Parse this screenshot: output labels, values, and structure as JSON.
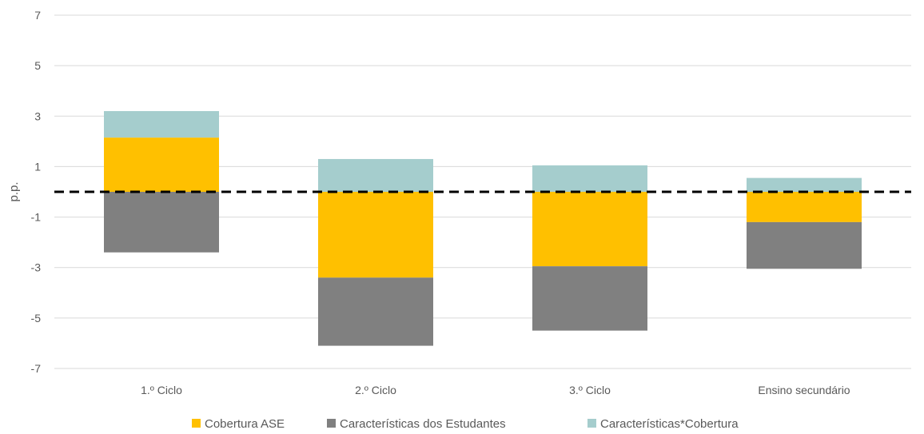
{
  "chart_data": {
    "type": "bar",
    "stacked": true,
    "ylabel": "p.p.",
    "ylim": [
      -7,
      7
    ],
    "yticks": [
      -7,
      -5,
      -3,
      -1,
      1,
      3,
      5,
      7
    ],
    "grid": true,
    "legend_position": "bottom",
    "reference_line": {
      "y": 0,
      "style": "dashed",
      "color": "#000000"
    },
    "categories": [
      "1.º Ciclo",
      "2.º Ciclo",
      "3.º Ciclo",
      "Ensino secundário"
    ],
    "series": [
      {
        "name": "Cobertura ASE",
        "color": "#FFC000",
        "values": [
          2.15,
          -3.4,
          -2.95,
          -1.2
        ]
      },
      {
        "name": "Características dos Estudantes",
        "color": "#808080",
        "values": [
          -2.4,
          -2.7,
          -2.55,
          -1.85
        ]
      },
      {
        "name": "Características*Cobertura",
        "color": "#A5CDCD",
        "values": [
          1.05,
          1.3,
          1.05,
          0.55
        ]
      }
    ]
  }
}
